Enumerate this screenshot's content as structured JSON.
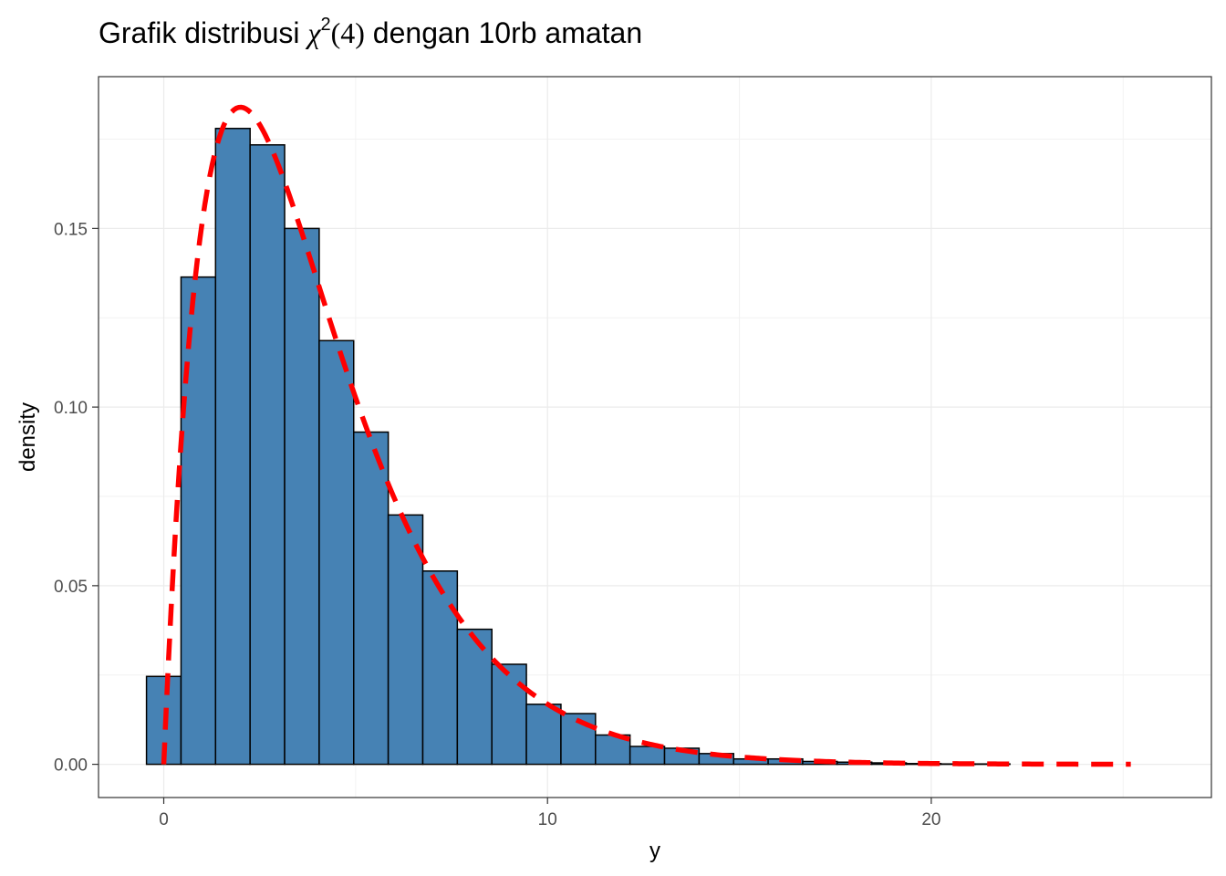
{
  "title": {
    "prefix": "Grafik distribusi ",
    "symbol": "χ",
    "superscript": "2",
    "argument": "(4)",
    "suffix": " dengan 10rb amatan"
  },
  "chart_data": {
    "type": "bar",
    "xlabel": "y",
    "ylabel": "density",
    "xlim": [
      -1.7,
      27.3
    ],
    "ylim": [
      -0.0093,
      0.1925
    ],
    "x_ticks": [
      0,
      10,
      20
    ],
    "x_tick_labels": [
      "0",
      "10",
      "20"
    ],
    "y_ticks": [
      0,
      0.05,
      0.1,
      0.15
    ],
    "y_tick_labels": [
      "0.00",
      "0.05",
      "0.10",
      "0.15"
    ],
    "grid": true,
    "histogram": {
      "bin_width": 0.9,
      "bins": [
        {
          "left": -0.45,
          "density": 0.0246
        },
        {
          "left": 0.45,
          "density": 0.1364
        },
        {
          "left": 1.35,
          "density": 0.178
        },
        {
          "left": 2.25,
          "density": 0.1734
        },
        {
          "left": 3.15,
          "density": 0.15
        },
        {
          "left": 4.05,
          "density": 0.1186
        },
        {
          "left": 4.95,
          "density": 0.093
        },
        {
          "left": 5.85,
          "density": 0.0698
        },
        {
          "left": 6.75,
          "density": 0.0541
        },
        {
          "left": 7.65,
          "density": 0.0378
        },
        {
          "left": 8.55,
          "density": 0.028
        },
        {
          "left": 9.45,
          "density": 0.0168
        },
        {
          "left": 10.35,
          "density": 0.0142
        },
        {
          "left": 11.25,
          "density": 0.0082
        },
        {
          "left": 12.15,
          "density": 0.005
        },
        {
          "left": 13.05,
          "density": 0.0045
        },
        {
          "left": 13.95,
          "density": 0.003
        },
        {
          "left": 14.85,
          "density": 0.0015
        },
        {
          "left": 15.75,
          "density": 0.0015
        },
        {
          "left": 16.65,
          "density": 0.0008
        },
        {
          "left": 17.55,
          "density": 0.0006
        },
        {
          "left": 18.45,
          "density": 0.0004
        },
        {
          "left": 19.35,
          "density": 0.0002
        },
        {
          "left": 20.25,
          "density": 0.0001
        },
        {
          "left": 21.15,
          "density": 0.0001
        },
        {
          "left": 22.05,
          "density": 0.0
        },
        {
          "left": 22.95,
          "density": 0.0
        },
        {
          "left": 23.85,
          "density": 0.0
        },
        {
          "left": 24.75,
          "density": 0.0
        },
        {
          "left": 25.65,
          "density": 0.0
        }
      ],
      "fill": "#4682b4",
      "stroke": "#000000"
    },
    "density_curve": {
      "distribution": "chi-square",
      "df": 4,
      "x_range": [
        0,
        25.2
      ],
      "color": "#ff0000",
      "linetype": "dashed"
    }
  }
}
